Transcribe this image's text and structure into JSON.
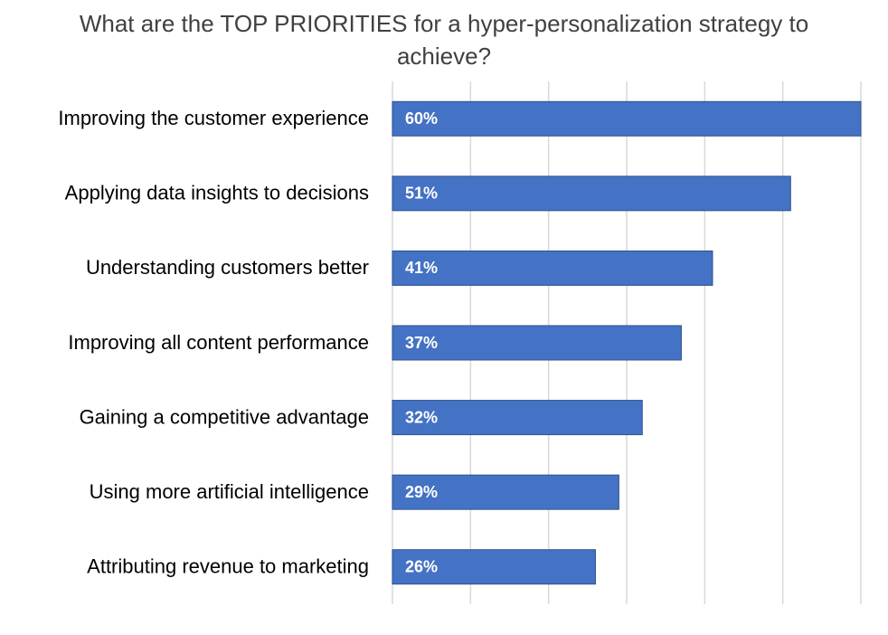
{
  "chart_data": {
    "type": "bar",
    "orientation": "horizontal",
    "title_lines": [
      "What are the TOP PRIORITIES for a hyper-personalization strategy to",
      "achieve?"
    ],
    "categories": [
      "Improving the customer experience",
      "Applying data insights to decisions",
      "Understanding customers better",
      "Improving all content performance",
      "Gaining a competitive advantage",
      "Using more artificial intelligence",
      "Attributing revenue to marketing"
    ],
    "values": [
      60,
      51,
      41,
      37,
      32,
      29,
      26
    ],
    "data_labels": [
      "60%",
      "51%",
      "41%",
      "37%",
      "32%",
      "29%",
      "26%"
    ],
    "unit": "%",
    "xlim": [
      0,
      60
    ],
    "grid": "vertical",
    "legend": "none",
    "colors": {
      "bar": "#4472C4",
      "bar_edge": "#2F528F",
      "grid": "#d9d9d9",
      "label": "#000000",
      "title": "#404040",
      "data_label": "#ffffff"
    }
  }
}
